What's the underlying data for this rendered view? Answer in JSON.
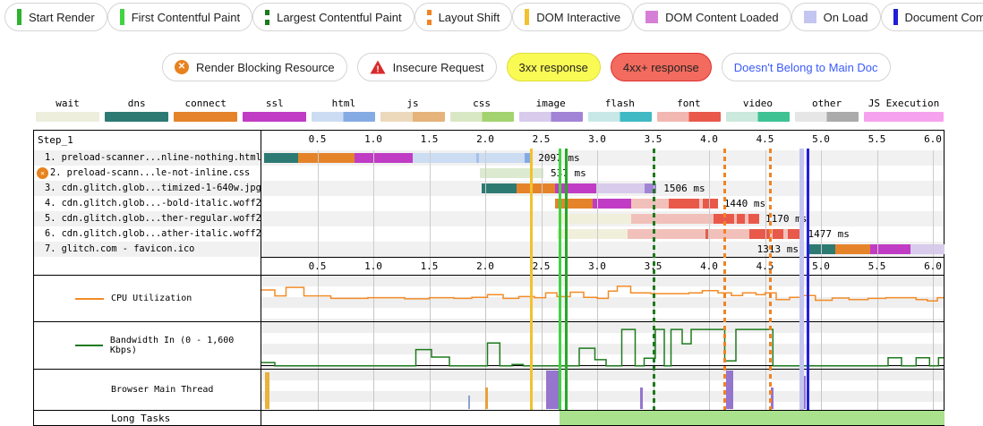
{
  "legend_primary": [
    {
      "label": "Start Render",
      "swatch": "bar",
      "color": "#2db32d"
    },
    {
      "label": "First Contentful Paint",
      "swatch": "bar",
      "color": "#41d341"
    },
    {
      "label": "Largest Contentful Paint",
      "swatch": "dashed-bar",
      "color": "#1b7a1b"
    },
    {
      "label": "Layout Shift",
      "swatch": "dashed-bar",
      "color": "#f28222"
    },
    {
      "label": "DOM Interactive",
      "swatch": "bar",
      "color": "#f2c12e"
    },
    {
      "label": "DOM Content Loaded",
      "swatch": "square",
      "color": "#d67fd6"
    },
    {
      "label": "On Load",
      "swatch": "square",
      "color": "#c5c5f2"
    },
    {
      "label": "Document Complete",
      "swatch": "bar",
      "color": "#1f1fd9"
    }
  ],
  "legend_secondary": [
    {
      "label": "Render Blocking Resource",
      "icon": "render-blocking",
      "bg": "#ffffff",
      "border": "#d4d4d4",
      "text": "#222222"
    },
    {
      "label": "Insecure Request",
      "icon": "insecure",
      "bg": "#ffffff",
      "border": "#d4d4d4",
      "text": "#222222"
    },
    {
      "label": "3xx response",
      "icon": "none",
      "bg": "#fafa55",
      "border": "#dede3a",
      "text": "#222222"
    },
    {
      "label": "4xx+ response",
      "icon": "none",
      "bg": "#f26b5e",
      "border": "#e03030",
      "text": "#222222"
    },
    {
      "label": "Doesn't Belong to Main Doc",
      "icon": "none",
      "bg": "#ffffff",
      "border": "#d4d4d4",
      "text": "#3b5bfc"
    }
  ],
  "resource_types": [
    {
      "label": "wait",
      "light": "#eeeedd",
      "dark": "#eeeedd"
    },
    {
      "label": "dns",
      "light": "#2d7a73",
      "dark": "#2d7a73"
    },
    {
      "label": "connect",
      "light": "#e5832b",
      "dark": "#e5832b"
    },
    {
      "label": "ssl",
      "light": "#c03cc4",
      "dark": "#c03cc4"
    },
    {
      "label": "html",
      "light": "#ccdcf2",
      "dark": "#85abe4"
    },
    {
      "label": "js",
      "light": "#ecd9bc",
      "dark": "#e6b37a"
    },
    {
      "label": "css",
      "light": "#d9e8c4",
      "dark": "#a3d36f"
    },
    {
      "label": "image",
      "light": "#d8cbec",
      "dark": "#a284d6"
    },
    {
      "label": "flash",
      "light": "#c8e8e8",
      "dark": "#3fb9c4"
    },
    {
      "label": "font",
      "light": "#f2b7b0",
      "dark": "#e8594a"
    },
    {
      "label": "video",
      "light": "#cbe9dc",
      "dark": "#3ec294"
    },
    {
      "label": "other",
      "light": "#e6e6e6",
      "dark": "#ababab"
    },
    {
      "label": "JS Execution",
      "light": "#f7a2ee",
      "dark": "#f7a2ee"
    }
  ],
  "waterfall": {
    "step_label": "Step_1",
    "axis_ticks": [
      "0.5",
      "1.0",
      "1.5",
      "2.0",
      "2.5",
      "3.0",
      "3.5",
      "4.0",
      "4.5",
      "5.0",
      "5.5",
      "6.0"
    ],
    "palette": {
      "dns": "#2d7a73",
      "connect": "#e5832b",
      "ssl": "#c03cc4",
      "html_light": "#ccdcf2",
      "html_dark": "#85abe4",
      "html_tick": "#a8c0ea",
      "css_light": "#dcead0",
      "image_light": "#d8cbec",
      "image_dark": "#a284d6",
      "font_light": "#f2c0ba",
      "font_dark": "#e8594a",
      "font_tick": "#e06050",
      "wait": "#f0efdc"
    },
    "rows": [
      {
        "label": "1. preload-scanner...nline-nothing.html",
        "icon": "",
        "duration": "2097 ms",
        "label_t": 2.45,
        "align": "after",
        "segments": [
          [
            "dns",
            0.02,
            0.33
          ],
          [
            "connect",
            0.33,
            0.83
          ],
          [
            "ssl",
            0.83,
            1.35
          ],
          [
            "html_light",
            1.35,
            1.92
          ],
          [
            "html_tick",
            1.92,
            1.94
          ],
          [
            "html_light",
            1.94,
            2.35
          ],
          [
            "html_dark",
            2.35,
            2.42
          ]
        ]
      },
      {
        "label": "2. preload-scann...le-not-inline.css",
        "icon": "render-blocking",
        "duration": "537 ms",
        "label_t": 2.56,
        "align": "after",
        "segments": [
          [
            "css_light",
            1.95,
            2.52
          ]
        ]
      },
      {
        "label": "3. cdn.glitch.glob...timized-1-640w.jpg",
        "icon": "",
        "duration": "1506 ms",
        "label_t": 3.57,
        "align": "after",
        "segments": [
          [
            "dns",
            1.97,
            2.28
          ],
          [
            "connect",
            2.28,
            2.62
          ],
          [
            "ssl",
            2.62,
            2.99
          ],
          [
            "image_light",
            2.99,
            3.42
          ],
          [
            "image_dark",
            3.42,
            3.53
          ]
        ]
      },
      {
        "label": "4. cdn.glitch.glob...-bold-italic.woff2",
        "icon": "",
        "duration": "1440 ms",
        "label_t": 4.11,
        "align": "after",
        "segments": [
          [
            "connect",
            2.62,
            2.96
          ],
          [
            "ssl",
            2.96,
            3.3
          ],
          [
            "font_light",
            3.3,
            3.64
          ],
          [
            "font_dark",
            3.64,
            3.91
          ],
          [
            "font_light",
            3.91,
            3.94
          ],
          [
            "font_dark",
            3.94,
            4.08
          ]
        ]
      },
      {
        "label": "5. cdn.glitch.glob...ther-regular.woff2",
        "icon": "",
        "duration": "1170 ms",
        "label_t": 4.48,
        "align": "after",
        "segments": [
          [
            "wait",
            2.64,
            3.3
          ],
          [
            "font_light",
            3.3,
            4.04
          ],
          [
            "font_dark",
            4.04,
            4.22
          ],
          [
            "font_light",
            4.22,
            4.25
          ],
          [
            "font_dark",
            4.25,
            4.32
          ],
          [
            "font_light",
            4.32,
            4.35
          ],
          [
            "font_dark",
            4.35,
            4.45
          ]
        ]
      },
      {
        "label": "6. cdn.glitch.glob...ather-italic.woff2",
        "icon": "",
        "duration": "1477 ms",
        "label_t": 4.86,
        "align": "after",
        "segments": [
          [
            "wait",
            2.64,
            3.27
          ],
          [
            "font_light",
            3.27,
            3.97
          ],
          [
            "font_tick",
            3.97,
            3.99
          ],
          [
            "font_light",
            3.99,
            4.36
          ],
          [
            "font_dark",
            4.36,
            4.54
          ],
          [
            "font_light",
            4.54,
            4.57
          ],
          [
            "font_dark",
            4.57,
            4.66
          ],
          [
            "font_light",
            4.66,
            4.7
          ],
          [
            "font_dark",
            4.7,
            4.83
          ]
        ]
      },
      {
        "label": "7. glitch.com - favicon.ico",
        "icon": "",
        "duration": "1313 ms",
        "label_t": 4.8,
        "align": "before",
        "segments": [
          [
            "dns",
            4.88,
            5.13
          ],
          [
            "connect",
            5.13,
            5.44
          ],
          [
            "ssl",
            5.44,
            5.8
          ],
          [
            "image_light",
            5.8,
            6.1
          ]
        ]
      }
    ],
    "markers": [
      {
        "name": "dom-interactive",
        "t": 2.41,
        "color": "#f2c12e",
        "style": "solid",
        "w": 3
      },
      {
        "name": "start-render",
        "t": 2.67,
        "color": "#41d341",
        "style": "solid",
        "w": 3
      },
      {
        "name": "first-contentful-paint",
        "t": 2.72,
        "color": "#28a828",
        "style": "solid",
        "w": 3
      },
      {
        "name": "largest-contentful-paint",
        "t": 3.51,
        "color": "#1b7a1b",
        "style": "dashed",
        "w": 3
      },
      {
        "name": "layout-shift-1",
        "t": 4.14,
        "color": "#f28222",
        "style": "dashed",
        "w": 3
      },
      {
        "name": "layout-shift-2",
        "t": 4.55,
        "color": "#f28222",
        "style": "dashed",
        "w": 3
      },
      {
        "name": "on-load",
        "t": 4.83,
        "color": "#c5c5f2",
        "style": "solid",
        "w": 5
      },
      {
        "name": "document-complete",
        "t": 4.88,
        "color": "#2020dd",
        "style": "solid",
        "w": 3
      }
    ]
  },
  "cpu": {
    "label": "CPU Utilization",
    "color": "#f28c28",
    "max": 100,
    "points": [
      [
        0,
        78
      ],
      [
        0.12,
        62
      ],
      [
        0.22,
        85
      ],
      [
        0.38,
        62
      ],
      [
        0.62,
        55
      ],
      [
        0.95,
        57
      ],
      [
        1.28,
        54
      ],
      [
        1.5,
        57
      ],
      [
        1.72,
        55
      ],
      [
        1.88,
        58
      ],
      [
        2.02,
        65
      ],
      [
        2.16,
        55
      ],
      [
        2.3,
        60
      ],
      [
        2.44,
        57
      ],
      [
        2.54,
        70
      ],
      [
        2.64,
        60
      ],
      [
        2.76,
        72
      ],
      [
        2.88,
        58
      ],
      [
        3.0,
        55
      ],
      [
        3.1,
        75
      ],
      [
        3.18,
        88
      ],
      [
        3.3,
        70
      ],
      [
        3.48,
        68
      ],
      [
        3.82,
        70
      ],
      [
        3.94,
        76
      ],
      [
        4.08,
        70
      ],
      [
        4.2,
        63
      ],
      [
        4.3,
        70
      ],
      [
        4.42,
        65
      ],
      [
        4.5,
        70
      ],
      [
        4.6,
        52
      ],
      [
        4.72,
        58
      ],
      [
        4.84,
        63
      ],
      [
        4.95,
        50
      ],
      [
        5.1,
        56
      ],
      [
        5.25,
        52
      ],
      [
        5.42,
        55
      ],
      [
        5.58,
        57
      ],
      [
        5.85,
        52
      ],
      [
        5.95,
        48
      ],
      [
        6.04,
        57
      ]
    ]
  },
  "bandwidth": {
    "label": "Bandwidth In (0 - 1,600 Kbps)",
    "color": "#1e7a1e",
    "max": 1600,
    "points": [
      [
        0,
        150
      ],
      [
        0.12,
        10
      ],
      [
        1.38,
        700
      ],
      [
        1.52,
        380
      ],
      [
        1.68,
        10
      ],
      [
        2.02,
        980
      ],
      [
        2.13,
        10
      ],
      [
        2.24,
        70
      ],
      [
        2.34,
        10
      ],
      [
        2.84,
        760
      ],
      [
        2.98,
        270
      ],
      [
        3.08,
        10
      ],
      [
        3.22,
        1560
      ],
      [
        3.34,
        10
      ],
      [
        3.42,
        330
      ],
      [
        3.52,
        1560
      ],
      [
        3.6,
        10
      ],
      [
        3.66,
        1560
      ],
      [
        3.76,
        950
      ],
      [
        3.84,
        1560
      ],
      [
        4.14,
        220
      ],
      [
        4.24,
        1560
      ],
      [
        4.57,
        10
      ],
      [
        5.6,
        350
      ],
      [
        5.72,
        10
      ],
      [
        5.85,
        350
      ],
      [
        5.97,
        10
      ],
      [
        6.05,
        350
      ]
    ]
  },
  "main_thread": {
    "label": "Browser Main Thread",
    "spikes": [
      {
        "t": 0.03,
        "w": 5,
        "h": 95,
        "color": "#e8b23c"
      },
      {
        "t": 1.85,
        "w": 2,
        "h": 35,
        "color": "#8aa4d0"
      },
      {
        "t": 2.0,
        "w": 3,
        "h": 55,
        "color": "#e8a03c"
      },
      {
        "t": 2.54,
        "w": 16,
        "h": 100,
        "color": "#9575cd"
      },
      {
        "t": 3.38,
        "w": 3,
        "h": 55,
        "color": "#9575cd"
      },
      {
        "t": 4.15,
        "w": 8,
        "h": 100,
        "color": "#9575cd"
      },
      {
        "t": 4.55,
        "w": 3,
        "h": 55,
        "color": "#9575cd"
      },
      {
        "t": 4.83,
        "w": 4,
        "h": 85,
        "color": "#9575cd"
      }
    ]
  },
  "long_tasks": {
    "label": "Long Tasks",
    "start_t": 2.66,
    "end_t": 6.1,
    "color": "#a9e18c"
  }
}
